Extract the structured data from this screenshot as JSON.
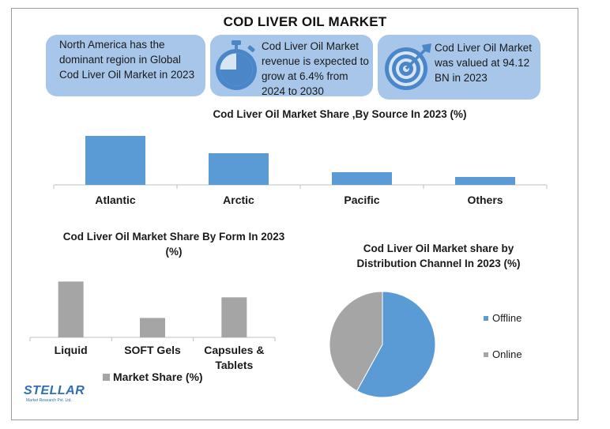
{
  "title": "COD LIVER OIL MARKET",
  "info_boxes": [
    {
      "text": "North America has the dominant region in Global Cod Liver Oil Market in 2023",
      "icon": "none"
    },
    {
      "text": "Cod Liver Oil Market revenue is expected to grow at 6.4% from 2024 to 2030",
      "icon": "stopwatch-icon"
    },
    {
      "text": "Cod Liver Oil Market was valued at 94.12 BN in 2023",
      "icon": "target-icon"
    }
  ],
  "logo": {
    "name": "STELLAR",
    "tagline": "Market Research Pvt. Ltd."
  },
  "colors": {
    "blue": "#5b9bd5",
    "gray": "#a5a5a5",
    "info_box": "#a7c6e9"
  },
  "chart_data": [
    {
      "type": "bar",
      "title": "Cod Liver Oil Market Share ,By Source In 2023 (%)",
      "categories": [
        "Atlantic",
        "Arctic",
        "Pacific",
        "Others"
      ],
      "values": [
        62,
        40,
        16,
        10
      ],
      "ylim": [
        0,
        70
      ],
      "grid": false,
      "color": "#5b9bd5"
    },
    {
      "type": "bar",
      "title": "Cod Liver Oil Market Share By Form In 2023 (%)",
      "categories": [
        "Liquid",
        "SOFT Gels",
        "Capsules & Tablets"
      ],
      "values": [
        46,
        16,
        33
      ],
      "ylim": [
        0,
        50
      ],
      "grid": false,
      "legend": "bottom",
      "series": [
        {
          "name": "Market Share (%)",
          "values": [
            46,
            16,
            33
          ]
        }
      ],
      "color": "#a5a5a5"
    },
    {
      "type": "pie",
      "title": "Cod Liver Oil Market share by Distribution Channel In 2023 (%)",
      "categories": [
        "Offline",
        "Online"
      ],
      "values": [
        58,
        42
      ],
      "legend": "right",
      "colors": [
        "#5b9bd5",
        "#a5a5a5"
      ]
    }
  ]
}
